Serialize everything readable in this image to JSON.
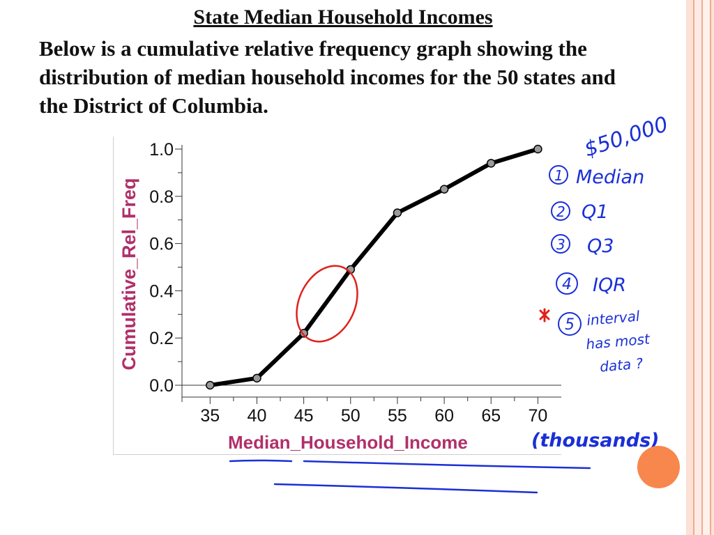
{
  "slide": {
    "title": "State Median Household Incomes",
    "body": "Below is a cumulative relative frequency graph showing the distribution of median household incomes for the 50 states and the District of Columbia."
  },
  "chart_data": {
    "type": "line",
    "title": "",
    "xlabel": "Median_Household_Income",
    "ylabel": "Cumulative_Rel_Freq",
    "x": [
      35,
      40,
      45,
      50,
      55,
      60,
      65,
      70
    ],
    "series": [
      {
        "values": [
          0.0,
          0.03,
          0.22,
          0.49,
          0.73,
          0.83,
          0.94,
          1.0
        ]
      }
    ],
    "xticks": [
      "35",
      "40",
      "45",
      "50",
      "55",
      "60",
      "65",
      "70"
    ],
    "yticks": [
      "0.0",
      "0.2",
      "0.4",
      "0.6",
      "0.8",
      "1.0"
    ],
    "xlim": [
      32,
      72.5
    ],
    "ylim": [
      0,
      1.0
    ],
    "grid": false,
    "colors": {
      "line": "#000000",
      "marker": "#9a9a9a",
      "axis_label": "#b0306a"
    }
  },
  "annotations": {
    "units": "(thousands)",
    "dollar_value": "$50,000",
    "questions": [
      {
        "number": "1",
        "text": "Median"
      },
      {
        "number": "2",
        "text": "Q1"
      },
      {
        "number": "3",
        "text": "Q3"
      },
      {
        "number": "4",
        "text": "IQR"
      },
      {
        "number": "5",
        "text": "interval has most data ?"
      }
    ],
    "ink_color": "#1a2fd6",
    "circle_color": "#e0201a"
  }
}
